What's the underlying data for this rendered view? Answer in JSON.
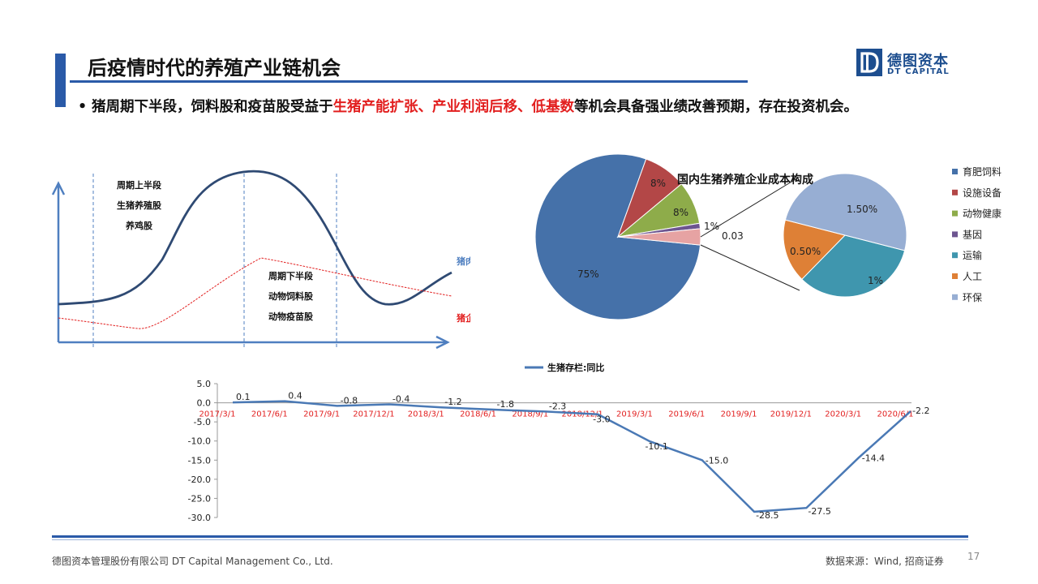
{
  "header": {
    "title": "后疫情时代的养殖产业链机会",
    "logo": {
      "cn": "德图资本",
      "en": "DT CAPITAL",
      "mark": "D"
    }
  },
  "bullet": {
    "part1": "猪周期下半段，饲料股和疫苗股受益于",
    "highlight": "生猪产能扩张、产业利润后移、低基数",
    "part2": "等机会具备强业绩改善预期，存在投资机会。"
  },
  "cycle_diagram": {
    "upper_title": "周期上半段",
    "upper_items": [
      "生猪养殖股",
      "养鸡股"
    ],
    "lower_title": "周期下半段",
    "lower_items": [
      "动物饲料股",
      "动物疫苗股"
    ],
    "price_label": "猪肉价格",
    "cost_label": "猪企成本",
    "colors": {
      "price": "#2f4a73",
      "cost": "#e21e1e",
      "axis": "#4f7fc0"
    }
  },
  "chart_data": [
    {
      "type": "pie",
      "title": "国内生猪养殖企业成本构成",
      "legend_position": "right",
      "slices": [
        {
          "name": "育肥饲料",
          "value": 75,
          "label": "75%",
          "color": "#4571a9"
        },
        {
          "name": "设施设备",
          "value": 8,
          "label": "8%",
          "color": "#b34747"
        },
        {
          "name": "动物健康",
          "value": 8,
          "label": "8%",
          "color": "#8eac4a"
        },
        {
          "name": "基因",
          "value": 1,
          "label": "1%",
          "color": "#6d5590"
        },
        {
          "name": "other",
          "value": 3,
          "label": "0.03",
          "color": "#e6a3a3"
        }
      ],
      "breakdown": [
        {
          "name": "运输",
          "value": 1,
          "label": "1%",
          "color": "#3f96ae"
        },
        {
          "name": "人工",
          "value": 0.5,
          "label": "0.50%",
          "color": "#de8036"
        },
        {
          "name": "环保",
          "value": 1.5,
          "label": "1.50%",
          "color": "#97aed3"
        }
      ],
      "legend": [
        {
          "name": "育肥饲料",
          "color": "#4571a9"
        },
        {
          "name": "设施设备",
          "color": "#b34747"
        },
        {
          "name": "动物健康",
          "color": "#8eac4a"
        },
        {
          "name": "基因",
          "color": "#6d5590"
        },
        {
          "name": "运输",
          "color": "#3f96ae"
        },
        {
          "name": "人工",
          "color": "#de8036"
        },
        {
          "name": "环保",
          "color": "#97aed3"
        }
      ]
    },
    {
      "type": "line",
      "legend_position": "top",
      "series": [
        {
          "name": "生猪存栏:同比",
          "color": "#4a79b5",
          "values": [
            0.1,
            0.4,
            -0.8,
            -0.4,
            -1.2,
            -1.8,
            -2.3,
            -3.0,
            -10.1,
            -15.0,
            -28.5,
            -27.5,
            -14.4,
            -2.2
          ],
          "labels": [
            "0.1",
            "0.4",
            "-0.8",
            "-0.4",
            "-1.2",
            "-1.8",
            "-2.3",
            "-3.0",
            "-10.1",
            "-15.0",
            "-28.5",
            "-27.5",
            "-14.4",
            "-2.2"
          ]
        }
      ],
      "x": [
        "2017/3/1",
        "2017/6/1",
        "2017/9/1",
        "2017/12/1",
        "2018/3/1",
        "2018/6/1",
        "2018/9/1",
        "2018/12/1",
        "2019/3/1",
        "2019/6/1",
        "2019/9/1",
        "2019/12/1",
        "2020/3/1",
        "2020/6/1"
      ],
      "ylim": [
        -30,
        5
      ],
      "yticks": [
        "5.0",
        "0.0",
        "-5.0",
        "-10.0",
        "-15.0",
        "-20.0",
        "-25.0",
        "-30.0"
      ],
      "tick_color": "#e21e1e"
    }
  ],
  "footer": {
    "company": "德图资本管理股份有限公司  DT Capital Management  Co., Ltd.",
    "source": "数据来源：Wind,  招商证券",
    "page": "17"
  }
}
